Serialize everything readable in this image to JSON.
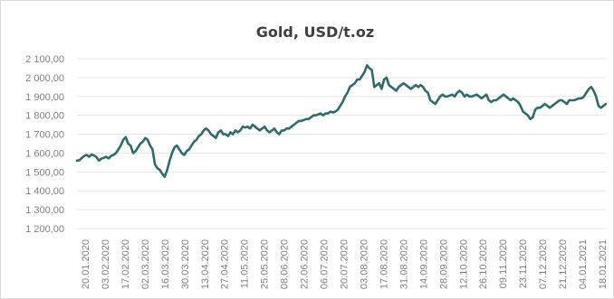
{
  "chart_data": {
    "type": "line",
    "title": "Gold, USD/t.oz",
    "xlabel": "",
    "ylabel": "",
    "ylim": [
      1200,
      2100
    ],
    "y_ticks": [
      "2 100,00",
      "2 000,00",
      "1 900,00",
      "1 800,00",
      "1 700,00",
      "1 600,00",
      "1 500,00",
      "1 400,00",
      "1 300,00",
      "1 200,00"
    ],
    "y_tick_values": [
      2100,
      2000,
      1900,
      1800,
      1700,
      1600,
      1500,
      1400,
      1300,
      1200
    ],
    "x_ticks": [
      "20.01.2020",
      "03.02.2020",
      "17.02.2020",
      "02.03.2020",
      "16.03.2020",
      "30.03.2020",
      "13.04.2020",
      "27.04.2020",
      "11.05.2020",
      "25.05.2020",
      "08.06.2020",
      "22.06.2020",
      "06.07.2020",
      "20.07.2020",
      "03.08.2020",
      "17.08.2020",
      "31.08.2020",
      "14.09.2020",
      "28.09.2020",
      "12.10.2020",
      "26.10.2020",
      "09.11.2020",
      "23.11.2020",
      "07.12.2020",
      "21.12.2020",
      "04.01.2021",
      "18.01.2021"
    ],
    "grid": true,
    "line_color": "#2e6b6b",
    "series": [
      {
        "values": [
          1560,
          1562,
          1575,
          1585,
          1590,
          1580,
          1592,
          1588,
          1578,
          1560,
          1570,
          1575,
          1580,
          1572,
          1585,
          1590,
          1600,
          1620,
          1640,
          1670,
          1685,
          1650,
          1640,
          1600,
          1610,
          1630,
          1650,
          1660,
          1680,
          1670,
          1640,
          1620,
          1540,
          1520,
          1510,
          1490,
          1475,
          1510,
          1560,
          1600,
          1630,
          1640,
          1620,
          1600,
          1590,
          1610,
          1620,
          1640,
          1660,
          1670,
          1690,
          1700,
          1720,
          1730,
          1720,
          1700,
          1690,
          1680,
          1710,
          1720,
          1700,
          1700,
          1690,
          1710,
          1700,
          1720,
          1710,
          1720,
          1740,
          1735,
          1740,
          1730,
          1750,
          1740,
          1730,
          1720,
          1730,
          1740,
          1720,
          1710,
          1720,
          1730,
          1710,
          1700,
          1720,
          1720,
          1730,
          1730,
          1740,
          1750,
          1760,
          1770,
          1770,
          1775,
          1780,
          1780,
          1790,
          1800,
          1800,
          1805,
          1810,
          1800,
          1810,
          1810,
          1820,
          1815,
          1820,
          1830,
          1850,
          1870,
          1900,
          1920,
          1950,
          1960,
          1970,
          1990,
          1990,
          2010,
          2030,
          2065,
          2050,
          2040,
          1950,
          1960,
          1970,
          1940,
          1990,
          2000,
          1960,
          1950,
          1940,
          1930,
          1950,
          1960,
          1970,
          1960,
          1950,
          1940,
          1950,
          1960,
          1950,
          1960,
          1950,
          1930,
          1920,
          1880,
          1870,
          1860,
          1880,
          1900,
          1910,
          1900,
          1900,
          1905,
          1910,
          1900,
          1920,
          1930,
          1920,
          1900,
          1910,
          1900,
          1900,
          1905,
          1910,
          1900,
          1890,
          1900,
          1910,
          1880,
          1870,
          1880,
          1880,
          1890,
          1900,
          1910,
          1900,
          1890,
          1880,
          1890,
          1880,
          1870,
          1850,
          1820,
          1810,
          1800,
          1780,
          1790,
          1830,
          1840,
          1840,
          1850,
          1860,
          1850,
          1840,
          1850,
          1860,
          1870,
          1880,
          1880,
          1870,
          1860,
          1880,
          1880,
          1880,
          1885,
          1890,
          1890,
          1900,
          1920,
          1940,
          1950,
          1930,
          1900,
          1850,
          1840,
          1850,
          1860
        ]
      }
    ]
  }
}
